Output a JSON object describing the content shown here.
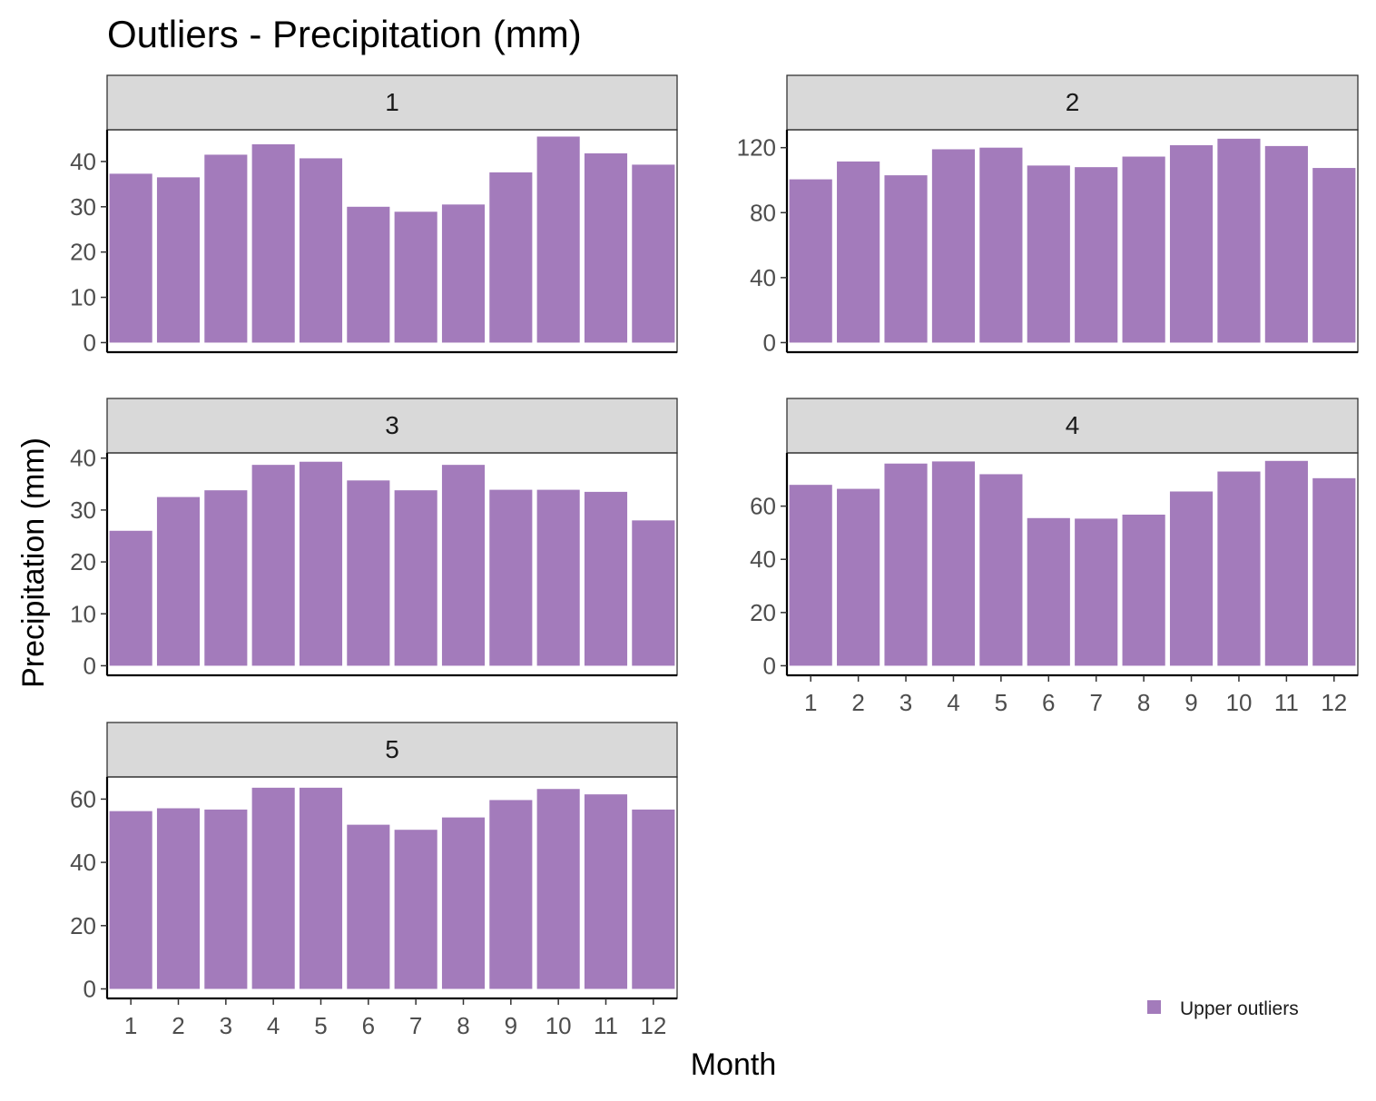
{
  "chart_data": {
    "type": "bar",
    "title": "Outliers - Precipitation (mm)",
    "xlabel": "Month",
    "ylabel": "Precipitation (mm)",
    "categories": [
      "1",
      "2",
      "3",
      "4",
      "5",
      "6",
      "7",
      "8",
      "9",
      "10",
      "11",
      "12"
    ],
    "bar_color": "#a37bbb",
    "legend": {
      "label": "Upper outliers",
      "position": "bottom-right"
    },
    "panels": [
      {
        "label": "1",
        "ylim": [
          0,
          47
        ],
        "yticks": [
          0,
          10,
          20,
          30,
          40
        ],
        "values": [
          37.3,
          36.5,
          41.5,
          43.8,
          40.7,
          30.0,
          28.9,
          30.5,
          37.6,
          45.5,
          41.8,
          39.3
        ]
      },
      {
        "label": "2",
        "ylim": [
          0,
          131
        ],
        "yticks": [
          0,
          40,
          80,
          120
        ],
        "values": [
          100.5,
          111.5,
          103.0,
          119.0,
          120.0,
          109.0,
          108.0,
          114.5,
          121.5,
          125.5,
          121.0,
          107.5
        ]
      },
      {
        "label": "3",
        "ylim": [
          0,
          41
        ],
        "yticks": [
          0,
          10,
          20,
          30,
          40
        ],
        "values": [
          26.0,
          32.5,
          33.8,
          38.7,
          39.3,
          35.7,
          33.8,
          38.7,
          33.9,
          33.9,
          33.5,
          28.0
        ]
      },
      {
        "label": "4",
        "ylim": [
          0,
          80
        ],
        "yticks": [
          0,
          20,
          40,
          60
        ],
        "values": [
          68.0,
          66.5,
          76.0,
          76.8,
          72.0,
          55.5,
          55.3,
          56.8,
          65.5,
          73.0,
          77.0,
          70.5
        ]
      },
      {
        "label": "5",
        "ylim": [
          0,
          67
        ],
        "yticks": [
          0,
          20,
          40,
          60
        ],
        "values": [
          56.2,
          57.1,
          56.7,
          63.6,
          63.6,
          51.9,
          50.3,
          54.2,
          59.7,
          63.2,
          61.5,
          56.7
        ]
      }
    ]
  }
}
